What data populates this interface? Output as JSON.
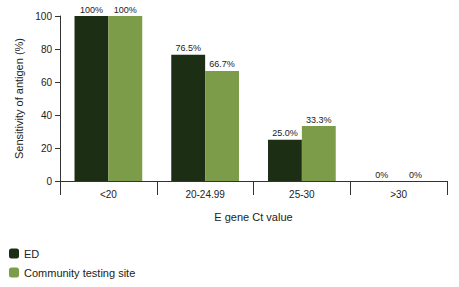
{
  "chart_data": {
    "type": "bar",
    "x_label": "E gene Ct value",
    "y_label": "Sensitivity of antigen (%)",
    "categories": [
      "<20",
      "20-24.99",
      "25-30",
      ">30"
    ],
    "series": [
      {
        "name": "ED",
        "color": "#1c2e14",
        "values": [
          100,
          76.5,
          25,
          0
        ],
        "value_labels": [
          "100%",
          "76.5%",
          "25.0%",
          "0%"
        ]
      },
      {
        "name": "Community testing site",
        "color": "#7c9c4a",
        "values": [
          100,
          66.7,
          33.3,
          0
        ],
        "value_labels": [
          "100%",
          "66.7%",
          "33.3%",
          "0%"
        ]
      }
    ],
    "ylim": [
      0,
      100
    ],
    "yticks": [
      0,
      20,
      40,
      60,
      80,
      100
    ],
    "grid": false,
    "legend": "bottom-left",
    "data_labels": true
  }
}
